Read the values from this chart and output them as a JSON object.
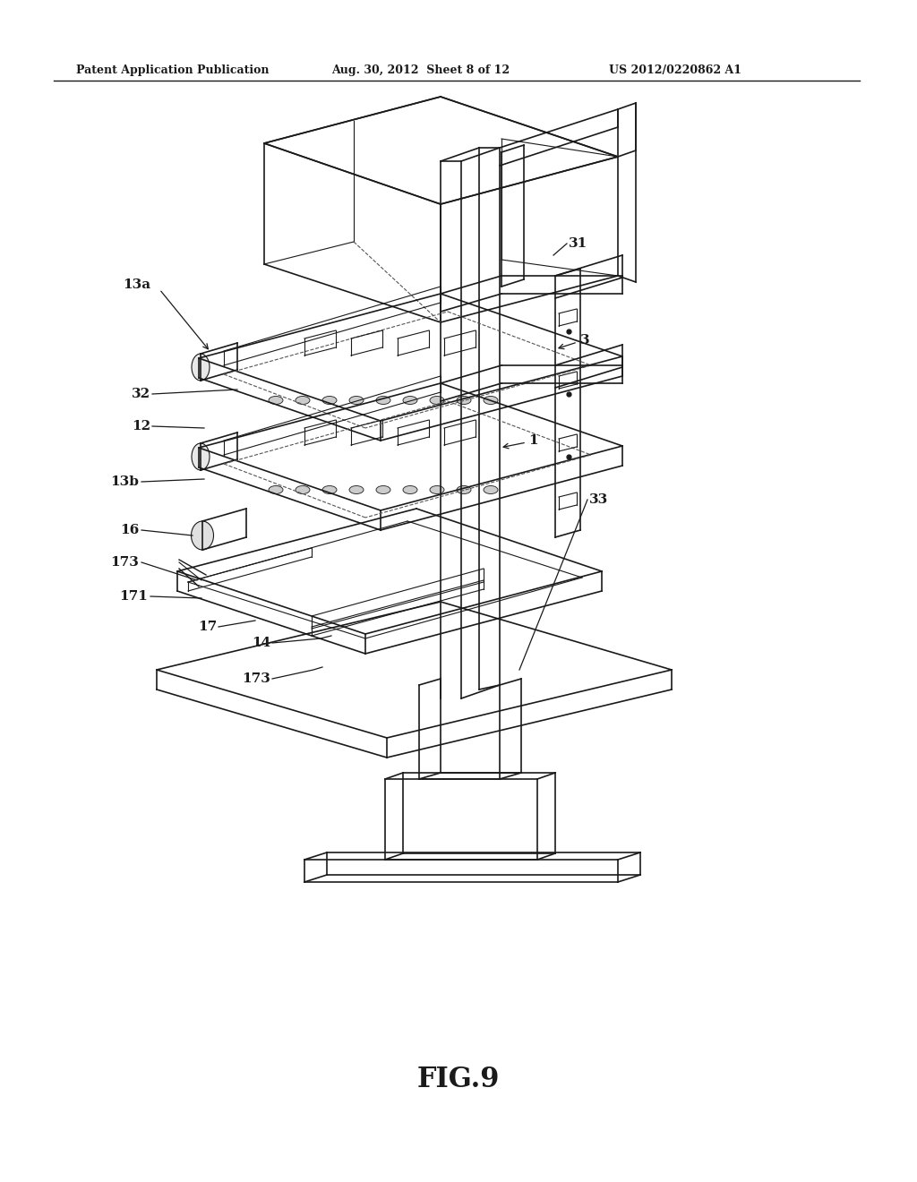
{
  "header_left": "Patent Application Publication",
  "header_mid": "Aug. 30, 2012  Sheet 8 of 12",
  "header_right": "US 2012/0220862 A1",
  "figure_label": "FIG.9",
  "bg_color": "#ffffff",
  "line_color": "#1a1a1a"
}
